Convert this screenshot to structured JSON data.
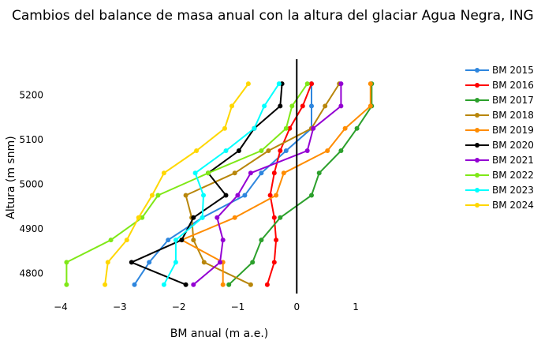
{
  "chart_data": {
    "type": "line",
    "title": "Cambios del balance de masa anual con la altura del glaciar Agua Negra, ING",
    "xlabel": "BM anual (m a.e.)",
    "ylabel": "Altura (m snm)",
    "xlim": [
      -4.2,
      1.6
    ],
    "ylim": [
      4755,
      5280
    ],
    "xticks": [
      -4,
      -3,
      -2,
      -1,
      0,
      1
    ],
    "xtick_labels": [
      "−4",
      "−3",
      "−2",
      "−1",
      "0",
      "1"
    ],
    "yticks": [
      4800,
      4900,
      5000,
      5100,
      5200
    ],
    "ytick_labels": [
      "4800",
      "4900",
      "5000",
      "5100",
      "5200"
    ],
    "grid": false,
    "zero_line": true,
    "legend_position": "right",
    "elevations": [
      4775,
      4825,
      4875,
      4925,
      4975,
      5025,
      5075,
      5125,
      5175,
      5225
    ],
    "series": [
      {
        "name": "BM 2015",
        "color": "#2e86de",
        "values": [
          -2.75,
          -2.5,
          -2.18,
          -1.6,
          -0.88,
          -0.6,
          -0.18,
          0.25,
          0.25,
          0.25
        ]
      },
      {
        "name": "BM 2016",
        "color": "#ff0000",
        "values": [
          -0.5,
          -0.38,
          -0.35,
          -0.38,
          -0.45,
          -0.38,
          -0.28,
          -0.12,
          0.1,
          0.25
        ]
      },
      {
        "name": "BM 2017",
        "color": "#2ca02c",
        "values": [
          -1.15,
          -0.75,
          -0.6,
          -0.28,
          0.25,
          0.38,
          0.75,
          1.02,
          1.27,
          1.27
        ]
      },
      {
        "name": "BM 2018",
        "color": "#b8860b",
        "values": [
          -0.78,
          -1.57,
          -1.75,
          -1.78,
          -1.88,
          -1.05,
          -0.48,
          0.25,
          0.48,
          0.72
        ]
      },
      {
        "name": "BM 2019",
        "color": "#ff8c00",
        "values": [
          -1.25,
          -1.25,
          -1.95,
          -1.05,
          -0.35,
          -0.22,
          0.52,
          0.82,
          1.25,
          1.25
        ]
      },
      {
        "name": "BM 2020",
        "color": "#000000",
        "values": [
          -1.88,
          -2.8,
          -1.95,
          -1.75,
          -1.2,
          -1.5,
          -0.98,
          -0.72,
          -0.28,
          -0.25
        ]
      },
      {
        "name": "BM 2021",
        "color": "#9400d3",
        "values": [
          -1.75,
          -1.3,
          -1.25,
          -1.35,
          -1.0,
          -0.78,
          0.18,
          0.28,
          0.75,
          0.75
        ]
      },
      {
        "name": "BM 2022",
        "color": "#7fe817",
        "values": [
          -3.9,
          -3.9,
          -3.15,
          -2.62,
          -2.35,
          -1.5,
          -0.6,
          -0.18,
          -0.08,
          0.18
        ]
      },
      {
        "name": "BM 2023",
        "color": "#00ffff",
        "values": [
          -2.25,
          -2.05,
          -2.05,
          -1.6,
          -1.58,
          -1.72,
          -1.2,
          -0.72,
          -0.55,
          -0.3
        ]
      },
      {
        "name": "BM 2024",
        "color": "#ffd700",
        "values": [
          -3.25,
          -3.2,
          -2.88,
          -2.68,
          -2.45,
          -2.25,
          -1.7,
          -1.22,
          -1.1,
          -0.82
        ]
      }
    ]
  }
}
